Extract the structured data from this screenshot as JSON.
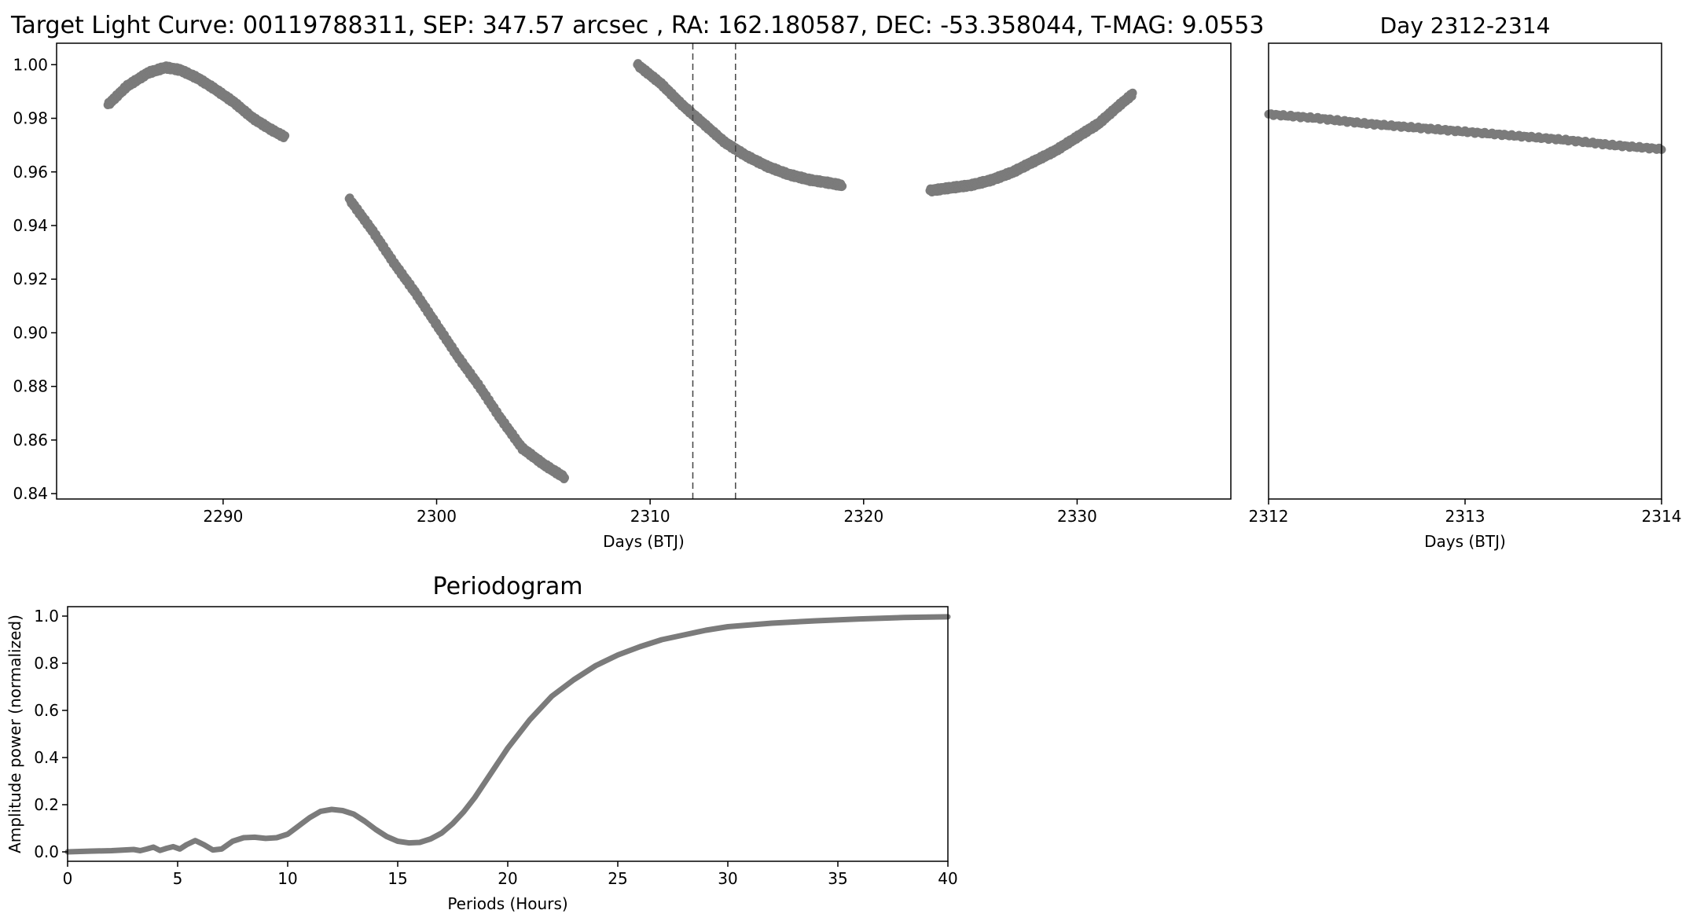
{
  "colors": {
    "series": "#7b7b7b",
    "axes": "#000000",
    "marker_line": "#444444",
    "background": "#ffffff"
  },
  "chart_data": [
    {
      "type": "scatter",
      "title": "Target Light Curve: 00119788311, SEP: 347.57 arcsec , RA: 162.180587, DEC: -53.358044, T-MAG: 9.0553",
      "xlabel": "Days (BTJ)",
      "ylabel": "",
      "xlim": [
        2282.2,
        2337.2
      ],
      "ylim": [
        0.838,
        1.008
      ],
      "xticks": [
        2290,
        2300,
        2310,
        2320,
        2330
      ],
      "xtick_labels": [
        "2290",
        "2300",
        "2310",
        "2320",
        "2330"
      ],
      "yticks": [
        0.84,
        0.86,
        0.88,
        0.9,
        0.92,
        0.94,
        0.96,
        0.98,
        1.0
      ],
      "ytick_labels": [
        "0.84",
        "0.86",
        "0.88",
        "0.90",
        "0.92",
        "0.94",
        "0.96",
        "0.98",
        "1.00"
      ],
      "vlines": [
        2312,
        2314
      ],
      "grid": false,
      "segments": [
        {
          "x": [
            2284.6,
            2285.5,
            2286.5,
            2287.3,
            2288.0,
            2288.8,
            2289.6,
            2290.5,
            2291.4,
            2292.2,
            2292.9
          ],
          "y": [
            0.985,
            0.992,
            0.997,
            0.999,
            0.998,
            0.995,
            0.991,
            0.986,
            0.98,
            0.976,
            0.973
          ]
        },
        {
          "x": [
            2295.9,
            2297.0,
            2298.0,
            2299.0,
            2300.0,
            2301.0,
            2302.0,
            2303.0,
            2304.0,
            2305.0,
            2306.0
          ],
          "y": [
            0.95,
            0.938,
            0.926,
            0.915,
            0.903,
            0.891,
            0.88,
            0.868,
            0.857,
            0.851,
            0.846
          ]
        },
        {
          "x": [
            2309.4,
            2310.5,
            2311.5,
            2312.5,
            2313.5,
            2314.5,
            2315.5,
            2316.5,
            2317.5,
            2318.3,
            2319.0
          ],
          "y": [
            1.0,
            0.993,
            0.985,
            0.978,
            0.971,
            0.966,
            0.962,
            0.959,
            0.957,
            0.956,
            0.955
          ]
        },
        {
          "x": [
            2323.1,
            2324.0,
            2325.0,
            2326.0,
            2327.0,
            2328.0,
            2329.0,
            2330.0,
            2331.0,
            2332.0,
            2332.6
          ],
          "y": [
            0.953,
            0.954,
            0.955,
            0.957,
            0.96,
            0.964,
            0.968,
            0.973,
            0.978,
            0.985,
            0.989
          ]
        }
      ]
    },
    {
      "type": "scatter",
      "title": "Day 2312-2314",
      "xlabel": "Days (BTJ)",
      "ylabel": "",
      "xlim": [
        2312,
        2314
      ],
      "xticks": [
        2312,
        2313,
        2314
      ],
      "xtick_labels": [
        "2312",
        "2313",
        "2314"
      ],
      "x": [
        2312.0,
        2312.25,
        2312.5,
        2312.75,
        2313.0,
        2313.25,
        2313.5,
        2313.75,
        2314.0
      ],
      "y": [
        0.9815,
        0.98,
        0.978,
        0.9765,
        0.975,
        0.9735,
        0.972,
        0.97,
        0.9685
      ],
      "y_axis_shares": "light-curve ylim",
      "grid": false
    },
    {
      "type": "line",
      "title": "Periodogram",
      "xlabel": "Periods (Hours)",
      "ylabel": "Amplitude power (normalized)",
      "xlim": [
        0,
        40
      ],
      "ylim": [
        -0.04,
        1.04
      ],
      "xticks": [
        0,
        5,
        10,
        15,
        20,
        25,
        30,
        35,
        40
      ],
      "xtick_labels": [
        "0",
        "5",
        "10",
        "15",
        "20",
        "25",
        "30",
        "35",
        "40"
      ],
      "yticks": [
        0.0,
        0.2,
        0.4,
        0.6,
        0.8,
        1.0
      ],
      "ytick_labels": [
        "0.0",
        "0.2",
        "0.4",
        "0.6",
        "0.8",
        "1.0"
      ],
      "x": [
        0,
        1,
        2,
        3,
        3.3,
        3.6,
        3.9,
        4.2,
        4.5,
        4.8,
        5.1,
        5.4,
        5.8,
        6.2,
        6.6,
        7.0,
        7.5,
        8.0,
        8.5,
        9.0,
        9.5,
        10.0,
        10.5,
        11.0,
        11.5,
        12.0,
        12.5,
        13.0,
        13.5,
        14.0,
        14.5,
        15.0,
        15.5,
        16.0,
        16.5,
        17.0,
        17.5,
        18.0,
        18.5,
        19.0,
        19.5,
        20.0,
        21.0,
        22.0,
        23.0,
        24.0,
        25.0,
        26.0,
        27.0,
        28.0,
        29.0,
        30.0,
        32.0,
        34.0,
        36.0,
        38.0,
        40.0
      ],
      "y": [
        0.0,
        0.003,
        0.005,
        0.01,
        0.005,
        0.012,
        0.02,
        0.006,
        0.015,
        0.022,
        0.012,
        0.03,
        0.048,
        0.03,
        0.008,
        0.012,
        0.045,
        0.06,
        0.062,
        0.057,
        0.06,
        0.075,
        0.11,
        0.145,
        0.172,
        0.18,
        0.175,
        0.16,
        0.13,
        0.095,
        0.065,
        0.045,
        0.038,
        0.04,
        0.055,
        0.08,
        0.12,
        0.17,
        0.23,
        0.3,
        0.37,
        0.44,
        0.56,
        0.66,
        0.73,
        0.79,
        0.835,
        0.87,
        0.9,
        0.92,
        0.94,
        0.955,
        0.97,
        0.98,
        0.988,
        0.994,
        0.997
      ]
    }
  ]
}
